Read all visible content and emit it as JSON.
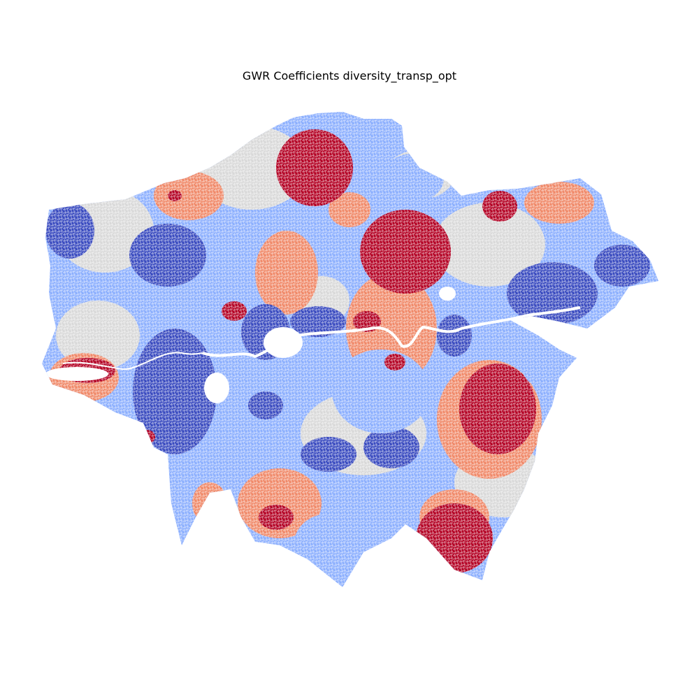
{
  "title": "GWR Coefficients diversity_transp_opt",
  "colors": {
    "strong_positive": "#b40426",
    "positive": "#f08a6a",
    "neutral": "#d9d9d9",
    "negative": "#8db0fe",
    "strong_negative": "#3b4cc0",
    "river": "#ffffff",
    "background": "#ffffff"
  },
  "legend": "none",
  "axes": "off",
  "style": "diverging coolwarm street-network map of Greater London"
}
